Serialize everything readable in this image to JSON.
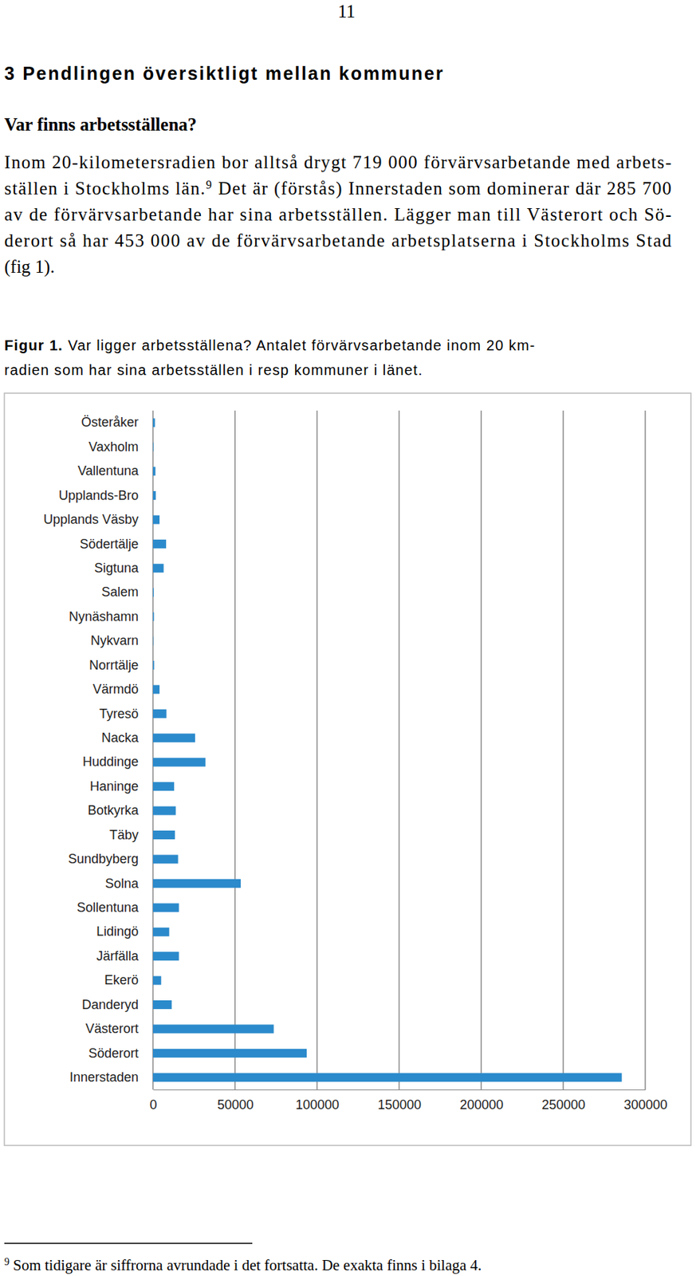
{
  "document": {
    "page_number": "11",
    "heading": "3 Pendlingen översiktligt mellan kommuner",
    "subheading": "Var finns arbetsställena?",
    "paragraph": [
      [
        "Inom 20-kilometersradien bor alltså drygt 719 000 förvärvsarbetande med arbets-"
      ],
      [
        "ställen i Stockholms län.",
        {
          "sup": "9"
        },
        " Det är (förstås) Innerstaden som dominerar där 285 700"
      ],
      [
        "av de förvärvsarbetande har sina arbetsställen. Lägger man till Västerort och Sö-"
      ],
      [
        "derort så har 453 000 av de förvärvsarbetande arbetsplatserna i Stockholms Stad"
      ],
      [
        "(fig 1)."
      ]
    ],
    "caption": {
      "label": "Figur 1.",
      "lines": [
        " Var ligger arbetsställena? Antalet förvärvsarbetande inom 20 km-",
        "radien som har sina arbetsställen i resp kommuner i länet."
      ]
    },
    "footnote": {
      "mark": "9",
      "text": "Som tidigare är siffrorna avrundade i det fortsatta. De exakta finns i bilaga 4."
    }
  },
  "chart_data": {
    "type": "bar",
    "orientation": "horizontal",
    "categories": [
      "Österåker",
      "Vaxholm",
      "Vallentuna",
      "Upplands-Bro",
      "Upplands Väsby",
      "Södertälje",
      "Sigtuna",
      "Salem",
      "Nynäshamn",
      "Nykvarn",
      "Norrtälje",
      "Värmdö",
      "Tyresö",
      "Nacka",
      "Huddinge",
      "Haninge",
      "Botkyrka",
      "Täby",
      "Sundbyberg",
      "Solna",
      "Sollentuna",
      "Lidingö",
      "Järfälla",
      "Ekerö",
      "Danderyd",
      "Västerort",
      "Söderort",
      "Innerstaden"
    ],
    "values": [
      1200,
      300,
      1500,
      1700,
      4000,
      8000,
      6500,
      500,
      600,
      200,
      700,
      4000,
      8200,
      25700,
      32000,
      12900,
      13900,
      13400,
      15300,
      53500,
      15800,
      9900,
      15800,
      5000,
      11400,
      73600,
      93700,
      285700
    ],
    "color": "#2b8acb",
    "xlim": [
      0,
      300000
    ],
    "xticks": [
      0,
      50000,
      100000,
      150000,
      200000,
      250000,
      300000
    ],
    "grid": true
  }
}
